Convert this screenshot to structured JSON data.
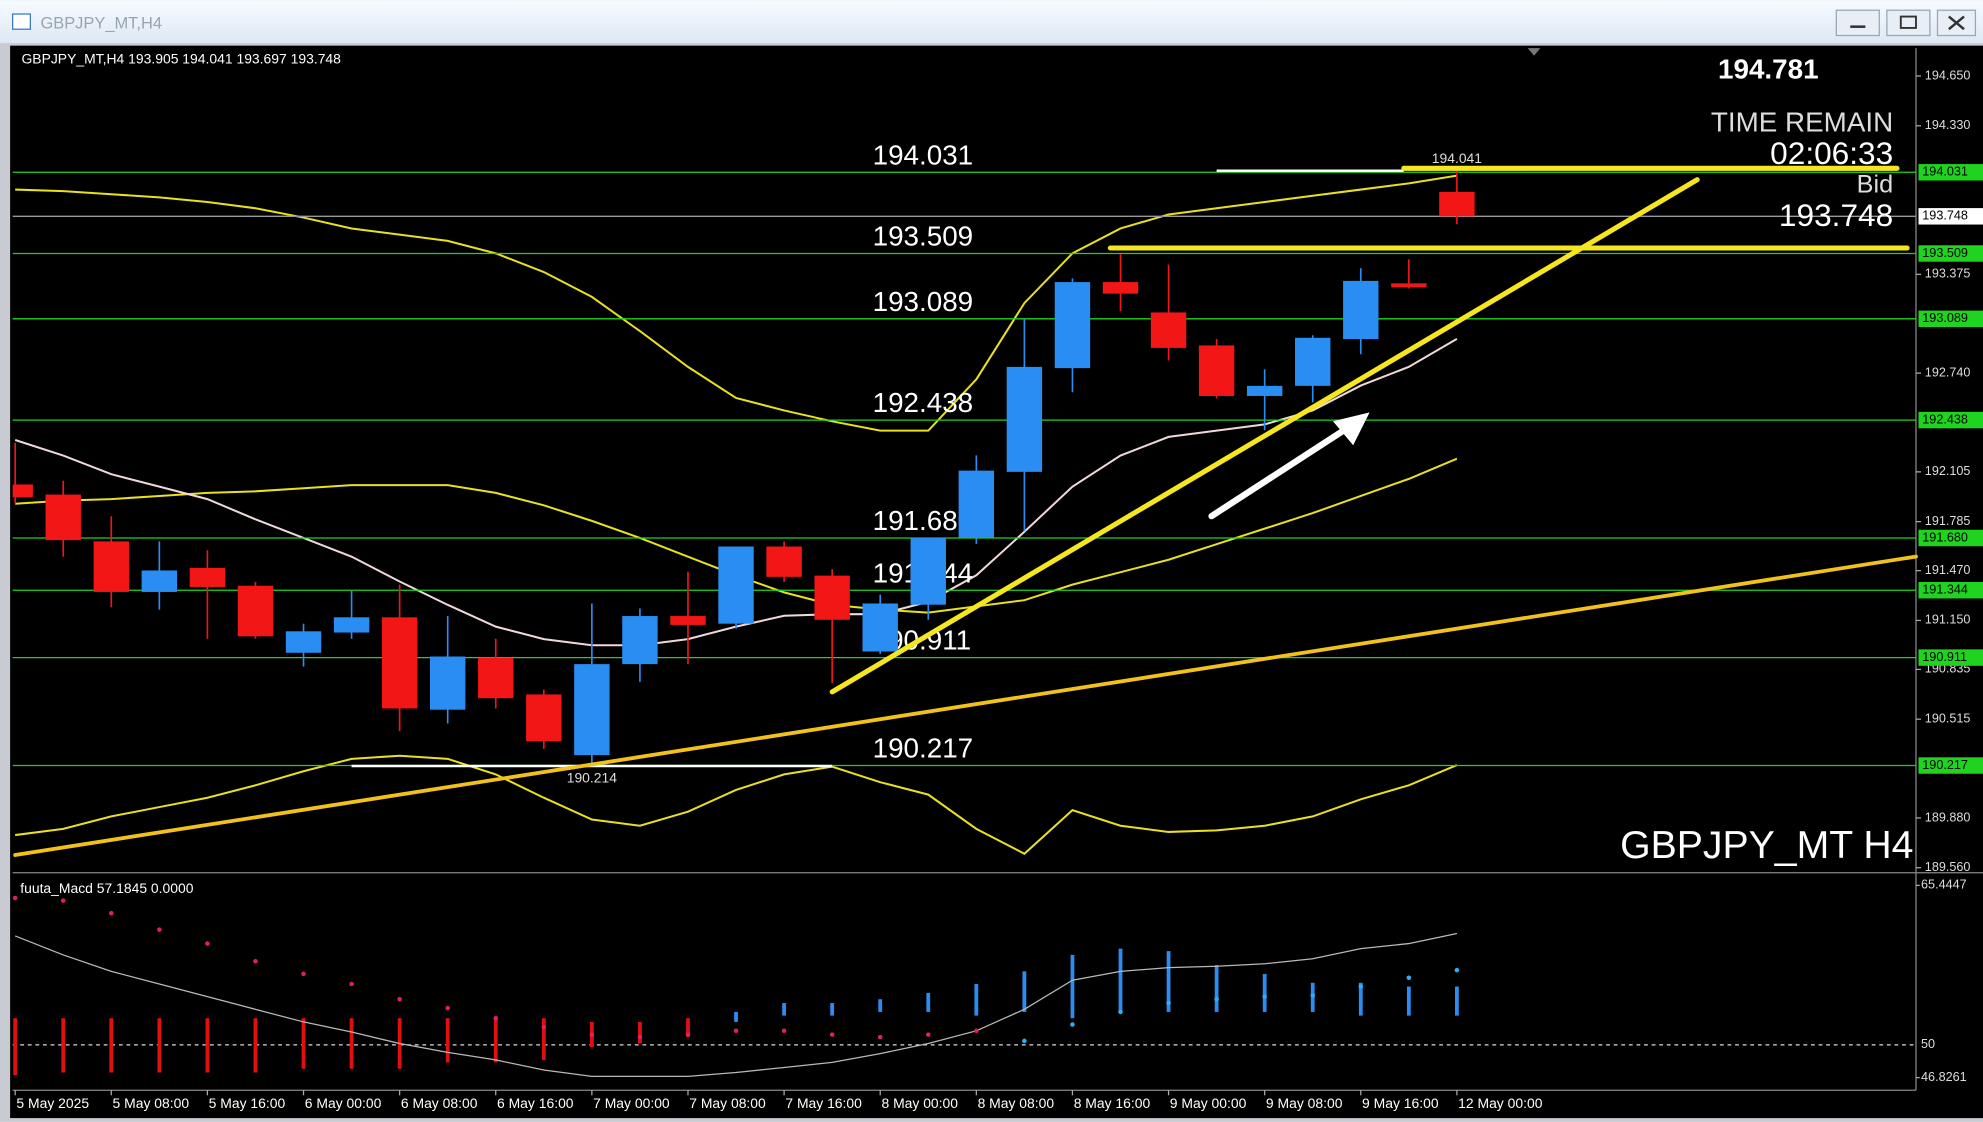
{
  "chart_data": [
    {
      "type": "candlestick",
      "symbol": "GBPJPY_MT,H4",
      "watermark": "GBPJPY_MT H4",
      "price_top": 194.781,
      "time_remain_label": "TIME REMAIN",
      "time_remain": "02:06:33",
      "bid_label": "Bid",
      "bid": 193.748,
      "categories": [
        "5 May 2025",
        null,
        "5 May 08:00",
        null,
        "5 May 16:00",
        null,
        "6 May 00:00",
        null,
        "6 May 08:00",
        null,
        "6 May 16:00",
        null,
        "7 May 00:00",
        null,
        "7 May 08:00",
        null,
        "7 May 16:00",
        null,
        "8 May 00:00",
        null,
        "8 May 08:00",
        null,
        "8 May 16:00",
        null,
        "9 May 00:00",
        null,
        "9 May 08:00",
        null,
        "9 May 16:00",
        null,
        "12 May 00:00"
      ],
      "open": [
        192.024,
        191.959,
        191.658,
        191.333,
        191.487,
        191.373,
        190.942,
        191.072,
        191.17,
        190.576,
        190.91,
        190.674,
        190.284,
        190.869,
        191.178,
        191.129,
        191.625,
        191.438,
        190.95,
        191.251,
        191.682,
        192.105,
        192.772,
        193.325,
        193.13,
        192.918,
        192.593,
        192.658,
        192.959,
        193.317,
        193.905
      ],
      "high": [
        192.292,
        192.048,
        191.82,
        191.658,
        191.601,
        191.398,
        191.129,
        191.341,
        191.381,
        191.178,
        191.032,
        190.706,
        191.259,
        191.227,
        191.463,
        191.625,
        191.658,
        191.479,
        191.316,
        191.682,
        192.211,
        193.089,
        193.349,
        193.504,
        193.438,
        192.959,
        192.764,
        192.983,
        193.414,
        193.471,
        194.041
      ],
      "low": [
        191.902,
        191.56,
        191.235,
        191.219,
        191.032,
        191.032,
        190.853,
        191.032,
        190.438,
        190.487,
        190.584,
        190.324,
        190.214,
        190.755,
        190.869,
        191.097,
        191.398,
        190.747,
        190.934,
        191.154,
        191.642,
        191.723,
        192.617,
        193.138,
        192.821,
        192.577,
        192.373,
        192.552,
        192.861,
        193.284,
        193.697
      ],
      "close": [
        191.942,
        191.666,
        191.333,
        191.471,
        191.365,
        191.048,
        191.08,
        191.17,
        190.584,
        190.918,
        190.65,
        190.373,
        190.869,
        191.178,
        191.121,
        191.625,
        191.43,
        191.154,
        191.259,
        191.682,
        192.113,
        192.78,
        193.325,
        193.251,
        192.902,
        192.593,
        192.658,
        192.967,
        193.333,
        193.292,
        193.748
      ],
      "up_color": "#2a8df2",
      "down_color": "#f21616",
      "lines": [
        {
          "color": "#e8e020",
          "values": [
            193.92,
            193.91,
            193.89,
            193.87,
            193.84,
            193.8,
            193.74,
            193.67,
            193.63,
            193.59,
            193.51,
            193.39,
            193.23,
            193.01,
            192.78,
            192.58,
            192.5,
            192.43,
            192.37,
            192.37,
            192.7,
            193.19,
            193.51,
            193.67,
            193.76,
            193.8,
            193.84,
            193.88,
            193.92,
            193.96,
            194.01
          ]
        },
        {
          "color": "#e8e020",
          "values": [
            191.9,
            191.92,
            191.93,
            191.95,
            191.97,
            191.98,
            192.0,
            192.02,
            192.02,
            192.02,
            191.97,
            191.89,
            191.79,
            191.68,
            191.56,
            191.44,
            191.33,
            191.25,
            191.22,
            191.2,
            191.24,
            191.28,
            191.38,
            191.46,
            191.54,
            191.64,
            191.74,
            191.84,
            191.95,
            192.06,
            192.19
          ]
        },
        {
          "color": "#e8e020",
          "values": [
            189.77,
            189.81,
            189.89,
            189.95,
            190.01,
            190.09,
            190.18,
            190.26,
            190.28,
            190.26,
            190.16,
            190.01,
            189.87,
            189.83,
            189.92,
            190.06,
            190.16,
            190.21,
            190.11,
            190.03,
            189.81,
            189.65,
            189.93,
            189.83,
            189.79,
            189.8,
            189.83,
            189.89,
            190.0,
            190.09,
            190.22
          ]
        },
        {
          "color": "#f0d8d8",
          "values": [
            192.31,
            192.21,
            192.09,
            192.01,
            191.93,
            191.8,
            191.68,
            191.56,
            191.4,
            191.25,
            191.11,
            191.03,
            190.99,
            190.99,
            191.03,
            191.11,
            191.18,
            191.19,
            191.19,
            191.27,
            191.44,
            191.72,
            192.01,
            192.21,
            192.33,
            192.37,
            192.41,
            192.5,
            192.66,
            192.78,
            192.96
          ]
        }
      ],
      "levels": [
        194.031,
        193.509,
        193.089,
        192.438,
        {
          "value": 191.68,
          "label": "191.680"
        },
        191.344,
        190.911,
        190.217
      ],
      "level_color": "#1fd41f",
      "high_marker": 194.041,
      "low_marker": 190.214,
      "ylim": [
        189.544,
        194.829
      ],
      "yticks": [
        {
          "value": 194.65,
          "label": "194.650"
        },
        {
          "value": 194.33,
          "label": "194.330"
        },
        193.375,
        {
          "value": 192.74,
          "label": "192.740"
        },
        192.105,
        191.785,
        {
          "value": 191.47,
          "label": "191.470"
        },
        {
          "value": 191.15,
          "label": "191.150"
        },
        190.835,
        190.515,
        {
          "value": 189.88,
          "label": "189.880"
        },
        {
          "value": 189.56,
          "label": "189.560"
        }
      ]
    },
    {
      "type": "macd",
      "title": "fuuta_Macd",
      "readout": [
        57.1845,
        {
          "value": 0,
          "label": "0.0000"
        }
      ],
      "ylim": [
        46.8261,
        65.4447
      ],
      "yticks": [
        65.4447,
        50,
        46.8261
      ],
      "histogram": [
        {
          "color": "#e01010",
          "high": [
            52.58,
            52.58,
            52.58,
            52.58,
            52.58,
            52.58,
            52.58,
            52.58,
            52.58,
            52.58,
            52.58,
            52.58,
            52.22,
            52.22,
            52.58,
            null,
            null,
            null,
            null,
            null,
            null,
            null,
            null,
            null,
            null,
            null,
            null,
            null,
            null,
            null,
            null
          ],
          "low": [
            47.07,
            47.32,
            47.32,
            47.32,
            47.32,
            47.32,
            47.68,
            47.68,
            47.68,
            48.3,
            48.3,
            48.54,
            49.77,
            50.13,
            50.75,
            null,
            null,
            null,
            null,
            null,
            null,
            null,
            null,
            null,
            null,
            null,
            null,
            null,
            null,
            null,
            null
          ]
        },
        {
          "color": "#2a8df2",
          "high": [
            null,
            null,
            null,
            null,
            null,
            null,
            null,
            null,
            null,
            null,
            null,
            null,
            null,
            null,
            null,
            53.19,
            54.05,
            54.05,
            54.42,
            55.03,
            55.89,
            57.12,
            58.71,
            59.32,
            59.08,
            57.73,
            56.87,
            56.01,
            56.01,
            55.65,
            55.65
          ],
          "low": [
            null,
            null,
            null,
            null,
            null,
            null,
            null,
            null,
            null,
            null,
            null,
            null,
            null,
            null,
            null,
            52.22,
            52.83,
            52.83,
            53.19,
            53.19,
            52.83,
            53.19,
            52.58,
            53.19,
            53.19,
            53.19,
            53.19,
            53.19,
            52.83,
            52.83,
            52.83
          ]
        }
      ],
      "line": {
        "color": "#b8b8b8",
        "values": [
          60.55,
          58.71,
          57.12,
          55.89,
          54.67,
          53.44,
          52.22,
          51.24,
          50.13,
          49.27,
          48.54,
          47.56,
          46.95,
          46.95,
          46.95,
          47.32,
          47.81,
          48.3,
          49.15,
          50.13,
          51.36,
          53.44,
          56.26,
          57.12,
          57.48,
          57.61,
          57.85,
          58.34,
          59.32,
          59.81,
          60.79
        ]
      },
      "dots": [
        {
          "color": "#e0205a",
          "values": [
            64.22,
            63.97,
            62.75,
            61.16,
            59.81,
            58.1,
            56.87,
            55.89,
            54.42,
            53.56,
            52.58,
            51.73,
            50.99,
            50.75,
            50.99,
            51.36,
            51.36,
            50.99,
            50.75,
            50.99,
            51.36,
            null,
            null,
            null,
            null,
            null,
            null,
            null,
            null,
            null,
            null
          ]
        },
        {
          "color": "#2ab0f0",
          "values": [
            null,
            null,
            null,
            null,
            null,
            null,
            null,
            null,
            null,
            null,
            null,
            null,
            null,
            null,
            null,
            null,
            null,
            null,
            null,
            null,
            null,
            50.38,
            51.97,
            53.19,
            54.05,
            54.42,
            54.67,
            54.79,
            55.65,
            56.5,
            57.24
          ]
        }
      ]
    }
  ]
}
